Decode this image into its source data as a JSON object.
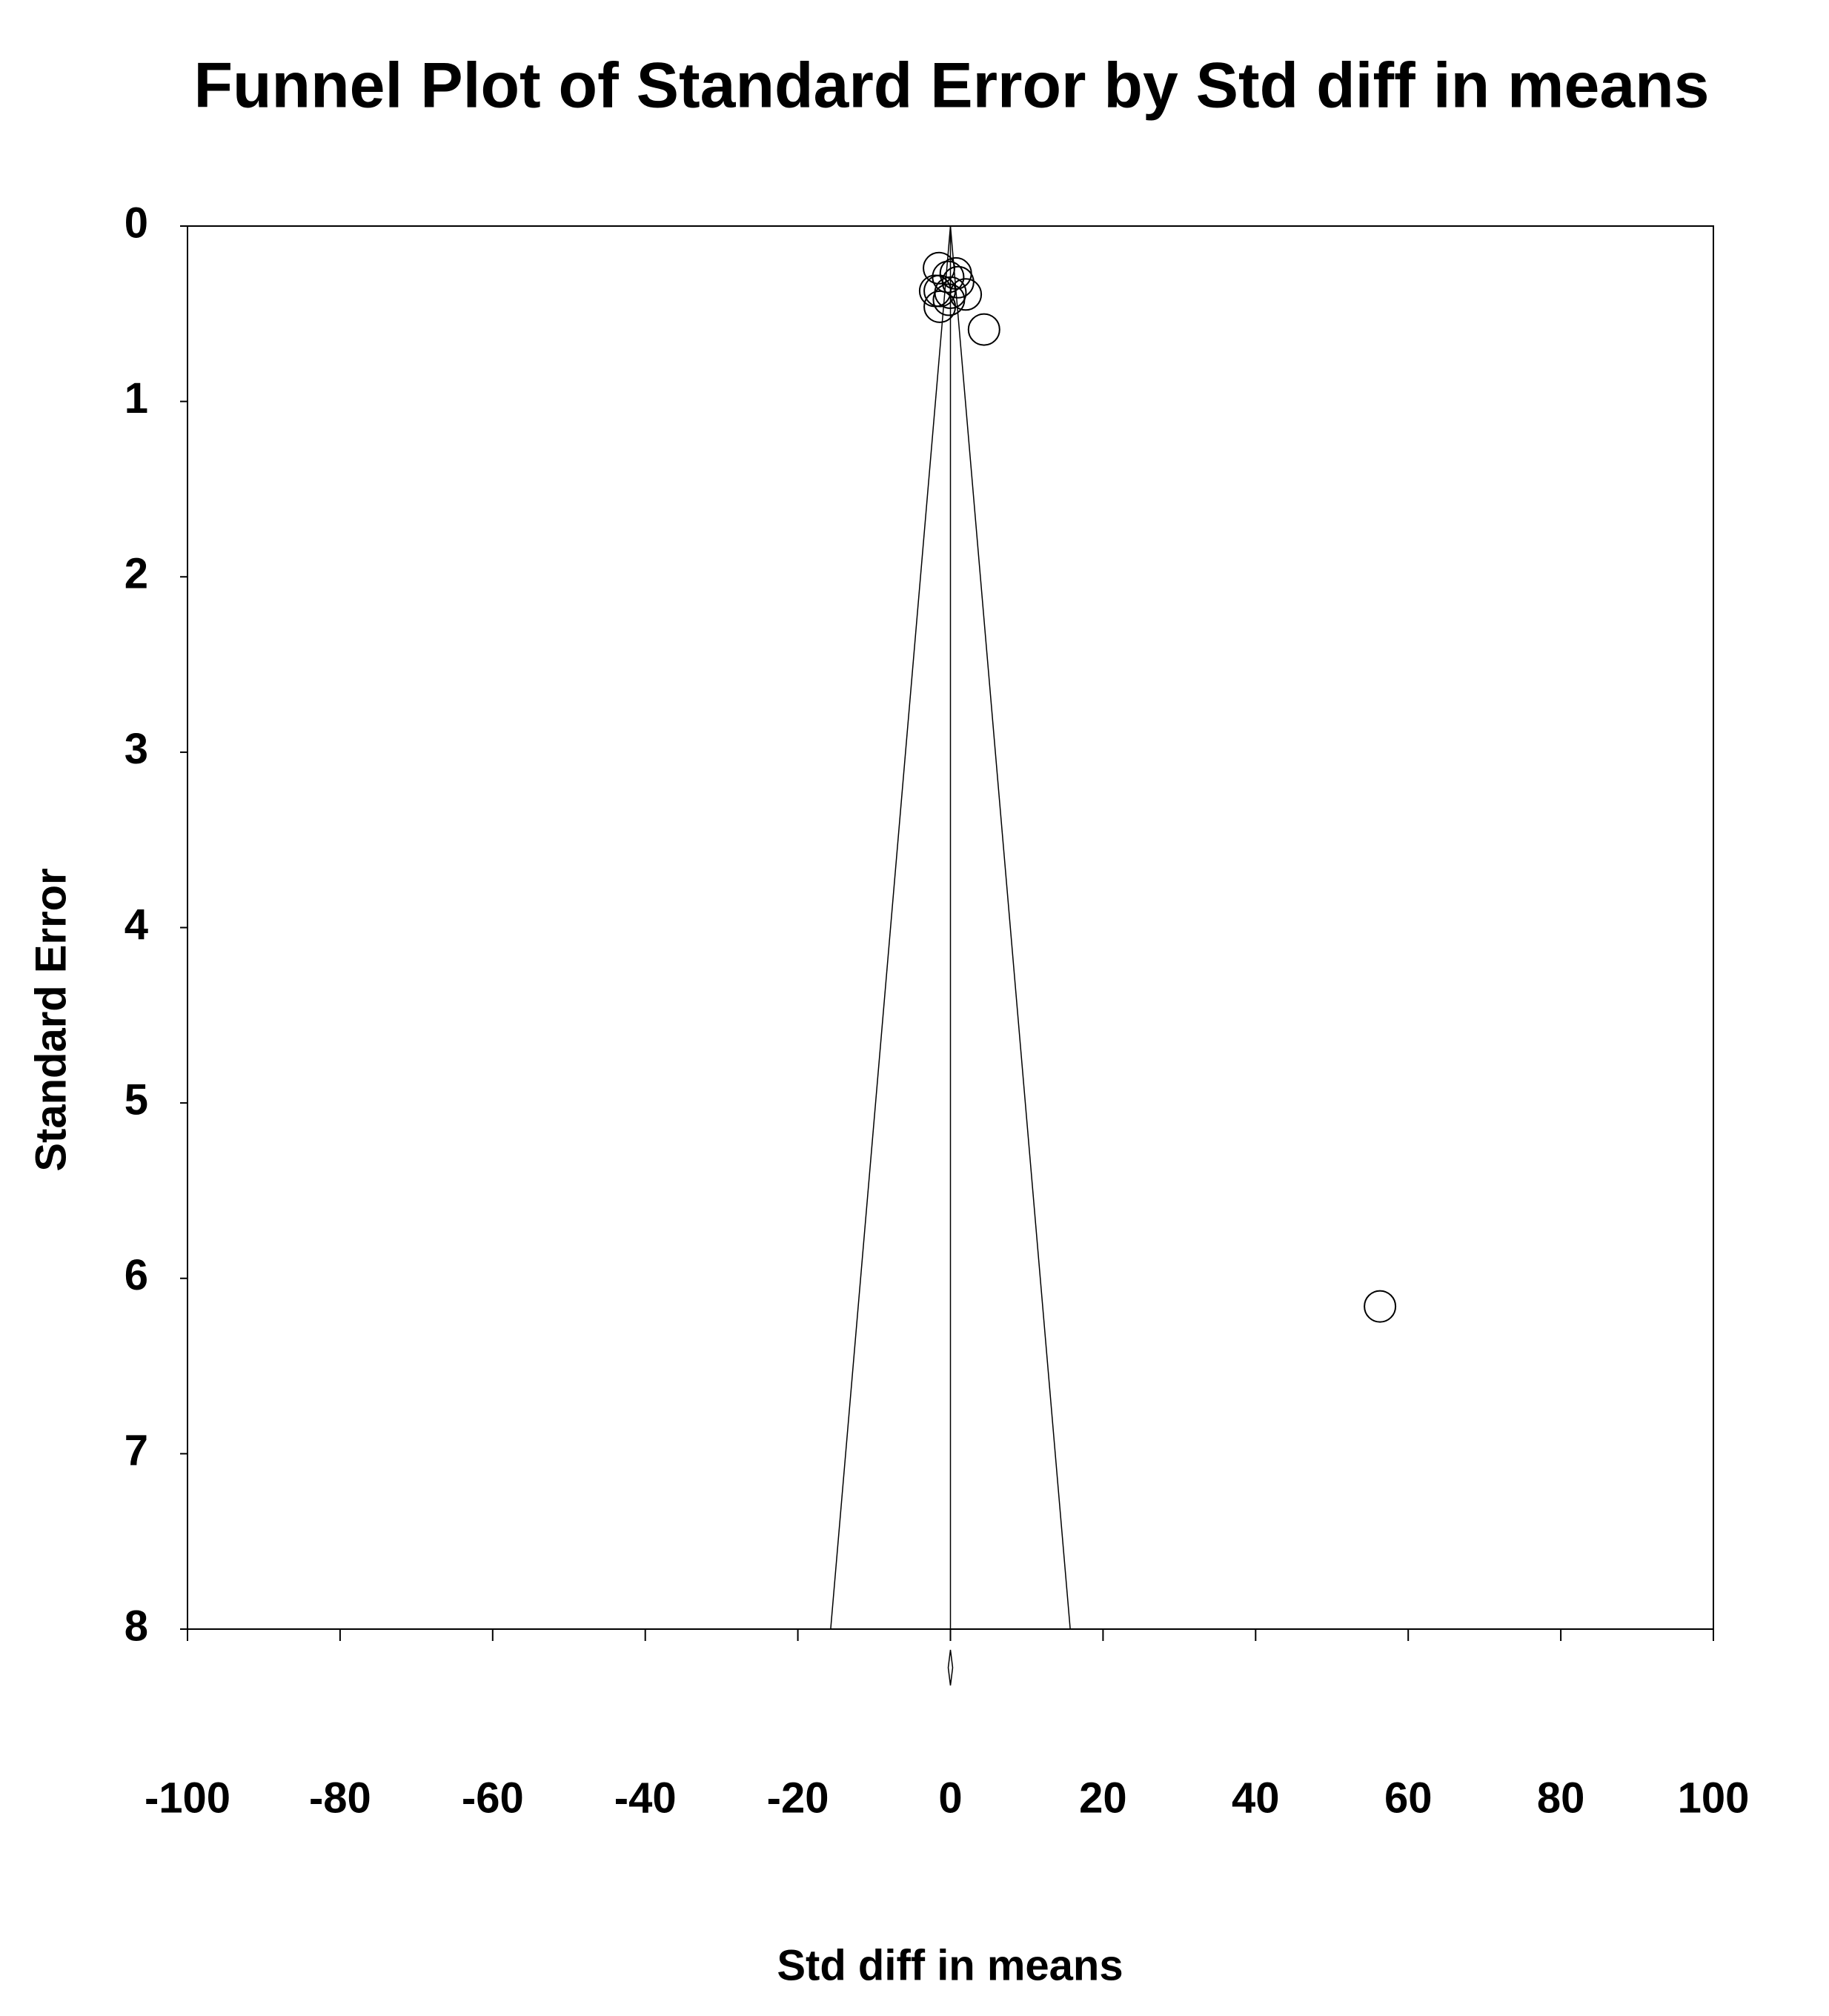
{
  "chart_data": {
    "type": "scatter",
    "title": "Funnel Plot of Standard Error by Std diff in means",
    "x_label": "Std diff in means",
    "y_label": "Standard Error",
    "x": [
      -1.5,
      -0.3,
      0.7,
      1.0,
      -1.4,
      0.0,
      2.0,
      -2.0,
      -1.4,
      -0.2,
      4.4,
      56.3
    ],
    "values": [
      0.24,
      0.29,
      0.27,
      0.32,
      0.37,
      0.38,
      0.39,
      0.37,
      0.46,
      0.42,
      0.59,
      6.16
    ],
    "xlim": [
      -100,
      100
    ],
    "xticks": [
      -100,
      -80,
      -60,
      -40,
      -20,
      0,
      20,
      40,
      60,
      80,
      100
    ],
    "ylim": [
      0,
      8
    ],
    "yticks": [
      0,
      1,
      2,
      3,
      4,
      5,
      6,
      7,
      8
    ],
    "y_inverted": true,
    "reference_lines": [
      {
        "x": [
          0,
          -15.7
        ],
        "y": [
          0,
          8
        ]
      },
      {
        "x": [
          0,
          15.7
        ],
        "y": [
          0,
          8
        ]
      },
      {
        "x": [
          0,
          0
        ],
        "y": [
          0,
          8
        ]
      }
    ],
    "color": "#000000"
  }
}
